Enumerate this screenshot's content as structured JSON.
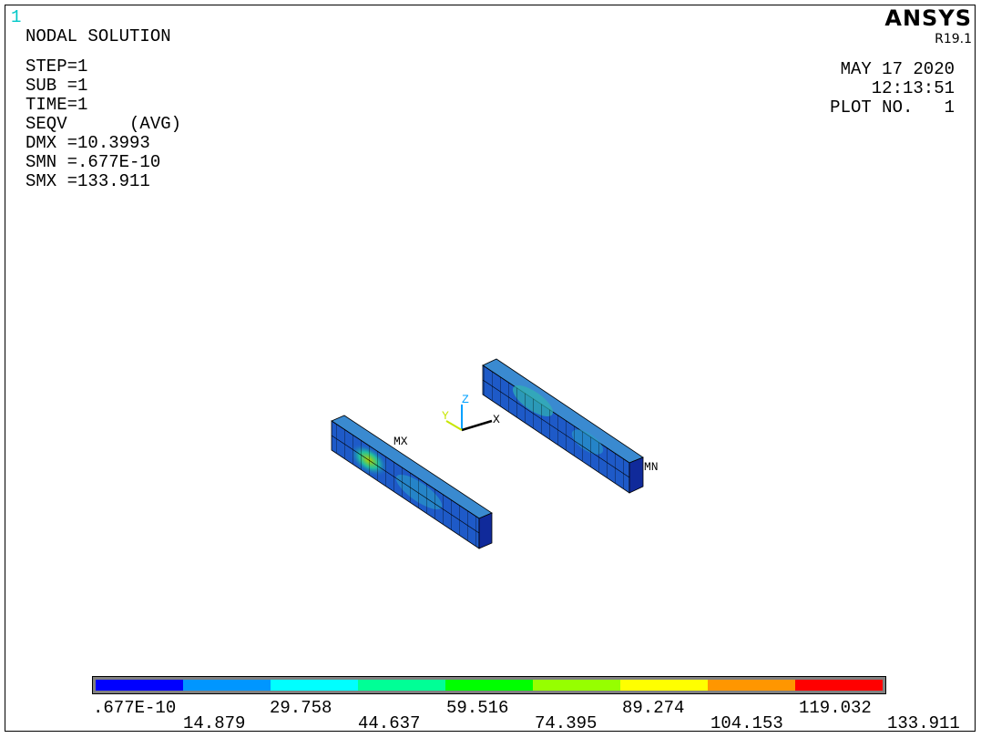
{
  "window_number": "1",
  "title": "NODAL SOLUTION",
  "info_lines": [
    "STEP=1",
    "SUB =1",
    "TIME=1",
    "SEQV      (AVG)",
    "DMX =10.3993",
    "SMN =.677E-10",
    "SMX =133.911"
  ],
  "brand": "ANSYS",
  "release": "R19.1",
  "date": "MAY 17 2020",
  "time": "12:13:51",
  "plot_no": "PLOT NO.   1",
  "markers": {
    "max": "MX",
    "min": "MN"
  },
  "axes": {
    "x": "X",
    "y": "Y",
    "z": "Z"
  },
  "legend": {
    "colors": [
      "#0000ff",
      "#0096ff",
      "#00ffff",
      "#00ff96",
      "#00ff00",
      "#96ff00",
      "#ffff00",
      "#ff9600",
      "#ff0000"
    ],
    "top_labels": [
      ".677E-10",
      "29.758",
      "59.516",
      "89.274",
      "119.032"
    ],
    "bottom_labels": [
      "14.879",
      "44.637",
      "74.395",
      "104.153",
      "133.911"
    ]
  }
}
